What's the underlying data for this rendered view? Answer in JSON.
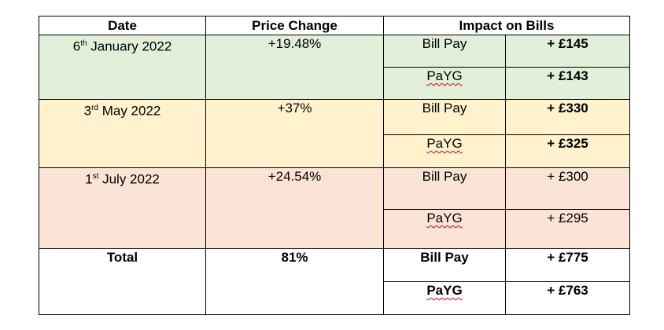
{
  "headers": {
    "date": "Date",
    "price_change": "Price Change",
    "impact": "Impact on Bills"
  },
  "rows": [
    {
      "date_day": "6",
      "date_suffix": "th",
      "date_rest": " January 2022",
      "price_change": "+19.48%",
      "bill_pay_label": "Bill Pay",
      "bill_pay_value": "+ £145",
      "payg_label": "PaYG",
      "payg_value": "+ £143",
      "color": "#e2efd9"
    },
    {
      "date_day": "3",
      "date_suffix": "rd",
      "date_rest": " May 2022",
      "price_change": "+37%",
      "bill_pay_label": "Bill Pay",
      "bill_pay_value": "+ £330",
      "payg_label": "PaYG",
      "payg_value": "+ £325",
      "color": "#fff2cc"
    },
    {
      "date_day": "1",
      "date_suffix": "st",
      "date_rest": " July 2022",
      "price_change": "+24.54%",
      "bill_pay_label": "Bill Pay",
      "bill_pay_value": "+ £300",
      "payg_label": "PaYG",
      "payg_value": "+ £295",
      "color": "#fbe4d5"
    }
  ],
  "total": {
    "label": "Total",
    "price_change": "81%",
    "bill_pay_label": "Bill Pay",
    "bill_pay_value": "+ £775",
    "payg_label": "PaYG",
    "payg_value": "+ £763"
  }
}
